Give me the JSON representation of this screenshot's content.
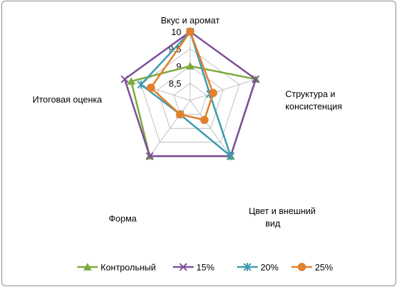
{
  "chart_data": {
    "type": "radar",
    "categories": [
      "Вкус и аромат",
      "Структура и консистенция",
      "Цвет и внешний вид",
      "Форма",
      "Итоговая оценка"
    ],
    "category_lines": [
      [
        "Вкус и аромат"
      ],
      [
        "Структура и",
        "консистенция"
      ],
      [
        "Цвет и внешний",
        "вид"
      ],
      [
        "Форма"
      ],
      [
        "Итоговая оценка"
      ]
    ],
    "rlim": [
      8,
      10
    ],
    "ticks": [
      8.5,
      9,
      9.5,
      10
    ],
    "tick_labels": [
      "8,5",
      "9",
      "9,5",
      "10"
    ],
    "grid": true,
    "legend_position": "bottom",
    "series": [
      {
        "name": "Контрольный",
        "values": [
          9.0,
          10.0,
          10.0,
          10.0,
          9.8
        ],
        "color": "#7cab3b",
        "marker": "triangle"
      },
      {
        "name": "15%",
        "values": [
          10.0,
          10.0,
          10.0,
          10.0,
          10.0
        ],
        "color": "#7d4f9b",
        "marker": "x"
      },
      {
        "name": "20%",
        "values": [
          10.0,
          8.6,
          10.0,
          8.5,
          9.5
        ],
        "color": "#3d9bb0",
        "marker": "asterisk"
      },
      {
        "name": "25%",
        "values": [
          10.0,
          8.7,
          8.7,
          8.5,
          9.2
        ],
        "color": "#e2802c",
        "marker": "circle"
      }
    ]
  }
}
